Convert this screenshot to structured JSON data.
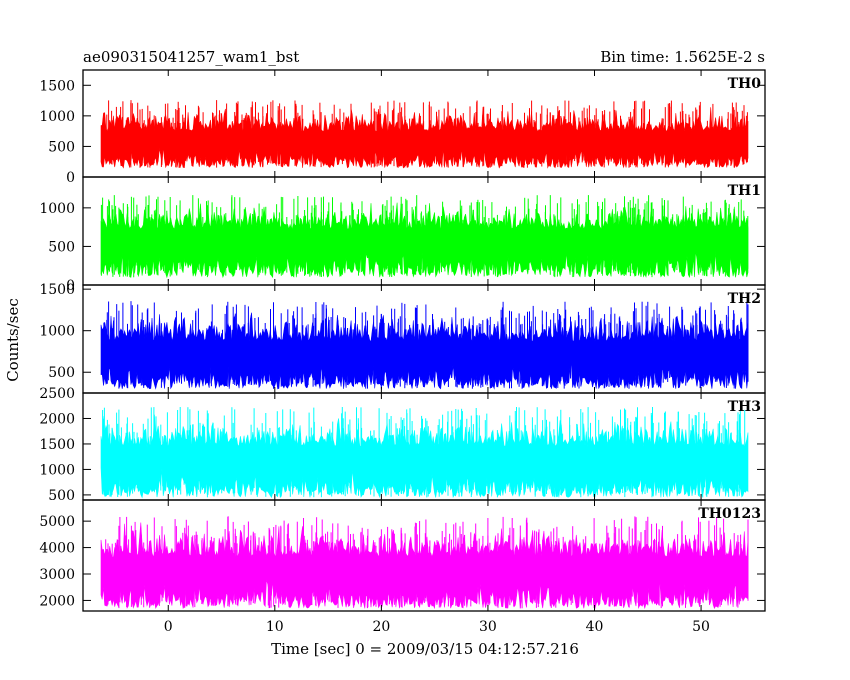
{
  "header": {
    "left_title": "ae090315041257_wam1_bst",
    "right_title": "Bin time: 1.5625E-2 s"
  },
  "chart_data": {
    "type": "line",
    "xlabel": "Time [sec] 0 = 2009/03/15 04:12:57.216",
    "ylabel": "Counts/sec",
    "xlim": [
      -8,
      56
    ],
    "xticks": [
      0,
      10,
      20,
      30,
      40,
      50
    ],
    "xtick_labels": [
      "0",
      "10",
      "20",
      "30",
      "40",
      "50"
    ],
    "bin_time_s": 0.015625,
    "panels": [
      {
        "name": "TH0",
        "color": "#ff0000",
        "ylim": [
          0,
          1750
        ],
        "yticks": [
          0,
          500,
          1000,
          1500
        ],
        "ytick_labels": [
          "0",
          "500",
          "1000",
          "1500"
        ],
        "x_range": [
          -8,
          56
        ],
        "mean": 650,
        "spread": 380,
        "floor": 150
      },
      {
        "name": "TH1",
        "color": "#00ff00",
        "ylim": [
          0,
          1400
        ],
        "yticks": [
          0,
          500,
          1000
        ],
        "ytick_labels": [
          "0",
          "500",
          "1000"
        ],
        "x_range": [
          -8,
          56
        ],
        "mean": 640,
        "spread": 330,
        "floor": 100
      },
      {
        "name": "TH2",
        "color": "#0000ff",
        "ylim": [
          250,
          1550
        ],
        "yticks": [
          500,
          1000,
          1500
        ],
        "ytick_labels": [
          "500",
          "1000",
          "1500"
        ],
        "x_range": [
          -8,
          56
        ],
        "mean": 780,
        "spread": 360,
        "floor": 300
      },
      {
        "name": "TH3",
        "color": "#00ffff",
        "ylim": [
          400,
          2500
        ],
        "yticks": [
          500,
          1000,
          1500,
          2000,
          2500
        ],
        "ytick_labels": [
          "500",
          "1000",
          "1500",
          "2000",
          "2500"
        ],
        "x_range": [
          -8,
          56
        ],
        "mean": 1300,
        "spread": 580,
        "floor": 450
      },
      {
        "name": "TH0123",
        "color": "#ff00ff",
        "ylim": [
          1600,
          5800
        ],
        "yticks": [
          2000,
          3000,
          4000,
          5000
        ],
        "ytick_labels": [
          "2000",
          "3000",
          "4000",
          "5000"
        ],
        "x_range": [
          -8,
          56
        ],
        "mean": 3350,
        "spread": 1150,
        "floor": 1700
      }
    ]
  }
}
